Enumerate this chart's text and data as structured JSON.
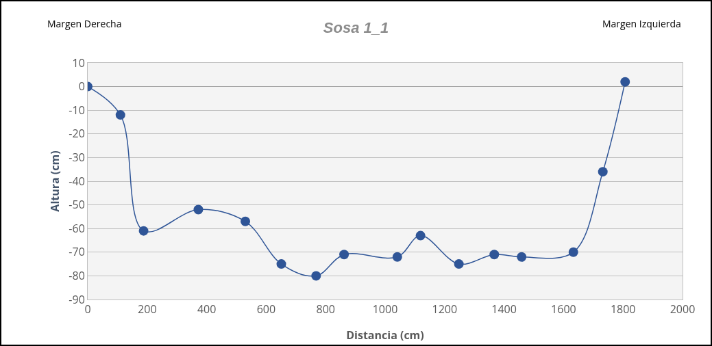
{
  "chart_data": {
    "type": "line",
    "title": "Sosa 1_1",
    "xlabel": "Distancia (cm)",
    "ylabel": "Altura (cm)",
    "annotations": [
      "Margen Derecha",
      "Margen Izquierda"
    ],
    "x": [
      0,
      110,
      188,
      372,
      530,
      651,
      768,
      862,
      1041,
      1119,
      1248,
      1367,
      1459,
      1633,
      1732,
      1807
    ],
    "series": [
      {
        "color": "#2f5597",
        "values": [
          0,
          -12,
          -61,
          -52,
          -57,
          -75,
          -80,
          -71,
          -72,
          -63,
          -75,
          -71,
          -72,
          -70,
          -36,
          2
        ]
      }
    ],
    "xlim": [
      0,
      2000
    ],
    "xticks": [
      0,
      200,
      400,
      600,
      800,
      1000,
      1200,
      1400,
      1600,
      1800,
      2000
    ],
    "ylim": [
      -90,
      10
    ],
    "yticks": [
      -90,
      -80,
      -70,
      -60,
      -50,
      -40,
      -30,
      -20,
      -10,
      0,
      10
    ],
    "grid": "y",
    "legend": false,
    "marker": "circle",
    "line_style": "solid"
  }
}
